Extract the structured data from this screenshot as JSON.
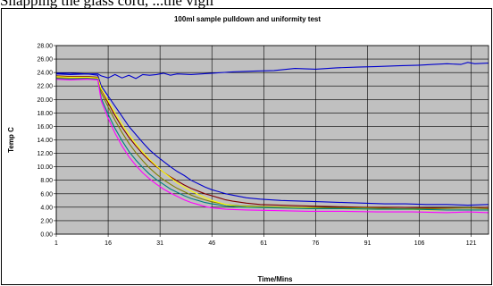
{
  "top_text": "Snapping the glass cord, ...the vigil",
  "chart_data": {
    "type": "line",
    "title": "100ml sample pulldown and uniformity test",
    "xlabel": "Time/Mins",
    "ylabel": "Temp C",
    "ylim": [
      0,
      28
    ],
    "xlim": [
      1,
      126
    ],
    "yticks": [
      "0.00",
      "2.00",
      "4.00",
      "6.00",
      "8.00",
      "10.00",
      "12.00",
      "14.00",
      "16.00",
      "18.00",
      "20.00",
      "22.00",
      "24.00",
      "26.00",
      "28.00"
    ],
    "xticks": [
      "1",
      "16",
      "31",
      "46",
      "61",
      "76",
      "91",
      "106",
      "121"
    ],
    "grid": true,
    "legend": "none",
    "plot_background": "#c0c0c0",
    "series": [
      {
        "color": "#0000cc",
        "points": [
          [
            1,
            23.9
          ],
          [
            5,
            23.9
          ],
          [
            10,
            23.8
          ],
          [
            13,
            23.8
          ],
          [
            14,
            23.5
          ],
          [
            16,
            23.2
          ],
          [
            18,
            23.7
          ],
          [
            20,
            23.2
          ],
          [
            22,
            23.6
          ],
          [
            24,
            23.1
          ],
          [
            26,
            23.7
          ],
          [
            28,
            23.6
          ],
          [
            30,
            23.7
          ],
          [
            32,
            23.9
          ],
          [
            34,
            23.6
          ],
          [
            36,
            23.8
          ],
          [
            40,
            23.7
          ],
          [
            46,
            23.9
          ],
          [
            52,
            24.1
          ],
          [
            58,
            24.2
          ],
          [
            64,
            24.3
          ],
          [
            70,
            24.6
          ],
          [
            76,
            24.5
          ],
          [
            82,
            24.7
          ],
          [
            88,
            24.8
          ],
          [
            94,
            24.9
          ],
          [
            100,
            25.0
          ],
          [
            106,
            25.1
          ],
          [
            110,
            25.2
          ],
          [
            114,
            25.3
          ],
          [
            118,
            25.2
          ],
          [
            120,
            25.5
          ],
          [
            122,
            25.3
          ],
          [
            126,
            25.4
          ]
        ]
      },
      {
        "color": "#0000cc",
        "points": [
          [
            1,
            23.8
          ],
          [
            5,
            23.7
          ],
          [
            10,
            23.8
          ],
          [
            13,
            23.6
          ],
          [
            14,
            22.0
          ],
          [
            16,
            20.5
          ],
          [
            18,
            19.0
          ],
          [
            20,
            17.5
          ],
          [
            22,
            16.0
          ],
          [
            24,
            14.8
          ],
          [
            26,
            13.6
          ],
          [
            28,
            12.5
          ],
          [
            30,
            11.6
          ],
          [
            32,
            10.8
          ],
          [
            34,
            10.0
          ],
          [
            36,
            9.3
          ],
          [
            38,
            8.7
          ],
          [
            40,
            8.0
          ],
          [
            42,
            7.5
          ],
          [
            44,
            7.0
          ],
          [
            46,
            6.6
          ],
          [
            48,
            6.3
          ],
          [
            50,
            6.0
          ],
          [
            52,
            5.8
          ],
          [
            54,
            5.6
          ],
          [
            56,
            5.4
          ],
          [
            60,
            5.2
          ],
          [
            66,
            5.0
          ],
          [
            72,
            4.9
          ],
          [
            78,
            4.8
          ],
          [
            84,
            4.7
          ],
          [
            90,
            4.6
          ],
          [
            96,
            4.5
          ],
          [
            102,
            4.5
          ],
          [
            108,
            4.4
          ],
          [
            114,
            4.4
          ],
          [
            120,
            4.3
          ],
          [
            126,
            4.4
          ]
        ]
      },
      {
        "color": "#800000",
        "points": [
          [
            1,
            23.5
          ],
          [
            5,
            23.4
          ],
          [
            10,
            23.4
          ],
          [
            13,
            23.3
          ],
          [
            14,
            21.5
          ],
          [
            16,
            19.5
          ],
          [
            18,
            17.6
          ],
          [
            20,
            15.9
          ],
          [
            22,
            14.4
          ],
          [
            24,
            13.1
          ],
          [
            26,
            11.9
          ],
          [
            28,
            10.9
          ],
          [
            30,
            10.0
          ],
          [
            32,
            9.2
          ],
          [
            34,
            8.5
          ],
          [
            36,
            7.9
          ],
          [
            38,
            7.3
          ],
          [
            40,
            6.8
          ],
          [
            42,
            6.4
          ],
          [
            44,
            6.0
          ],
          [
            46,
            5.7
          ],
          [
            48,
            5.4
          ],
          [
            50,
            5.1
          ],
          [
            52,
            4.9
          ],
          [
            56,
            4.6
          ],
          [
            60,
            4.4
          ],
          [
            66,
            4.3
          ],
          [
            72,
            4.2
          ],
          [
            80,
            4.1
          ],
          [
            90,
            4.0
          ],
          [
            100,
            4.0
          ],
          [
            110,
            3.9
          ],
          [
            120,
            3.9
          ],
          [
            126,
            4.0
          ]
        ]
      },
      {
        "color": "#808000",
        "points": [
          [
            1,
            23.2
          ],
          [
            5,
            23.2
          ],
          [
            10,
            23.2
          ],
          [
            13,
            23.1
          ],
          [
            14,
            21.0
          ],
          [
            16,
            18.9
          ],
          [
            18,
            16.9
          ],
          [
            20,
            15.1
          ],
          [
            22,
            13.5
          ],
          [
            24,
            12.1
          ],
          [
            26,
            10.9
          ],
          [
            28,
            9.8
          ],
          [
            30,
            8.9
          ],
          [
            32,
            8.1
          ],
          [
            34,
            7.4
          ],
          [
            36,
            6.8
          ],
          [
            38,
            6.3
          ],
          [
            40,
            5.8
          ],
          [
            42,
            5.4
          ],
          [
            44,
            5.1
          ],
          [
            46,
            4.8
          ],
          [
            48,
            4.6
          ],
          [
            50,
            4.4
          ],
          [
            54,
            4.2
          ],
          [
            60,
            4.1
          ],
          [
            70,
            4.0
          ],
          [
            80,
            3.9
          ],
          [
            90,
            3.9
          ],
          [
            100,
            3.8
          ],
          [
            110,
            3.8
          ],
          [
            120,
            3.9
          ],
          [
            126,
            3.8
          ]
        ]
      },
      {
        "color": "#ffff00",
        "points": [
          [
            1,
            23.4
          ],
          [
            5,
            23.3
          ],
          [
            10,
            23.3
          ],
          [
            13,
            23.2
          ],
          [
            14,
            21.6
          ],
          [
            16,
            19.8
          ],
          [
            18,
            18.0
          ],
          [
            20,
            16.3
          ],
          [
            22,
            14.8
          ],
          [
            24,
            13.4
          ],
          [
            26,
            12.2
          ],
          [
            28,
            11.1
          ],
          [
            30,
            10.1
          ],
          [
            32,
            9.2
          ],
          [
            34,
            8.4
          ],
          [
            36,
            7.6
          ],
          [
            38,
            7.0
          ],
          [
            40,
            6.4
          ],
          [
            42,
            5.9
          ],
          [
            44,
            5.4
          ],
          [
            46,
            5.0
          ],
          [
            48,
            4.7
          ],
          [
            50,
            4.4
          ],
          [
            54,
            4.1
          ],
          [
            60,
            4.0
          ],
          [
            70,
            3.9
          ],
          [
            80,
            3.8
          ],
          [
            90,
            3.7
          ],
          [
            100,
            3.7
          ],
          [
            110,
            3.6
          ],
          [
            120,
            3.6
          ],
          [
            126,
            3.6
          ]
        ]
      },
      {
        "color": "#008080",
        "points": [
          [
            1,
            23.1
          ],
          [
            5,
            23.0
          ],
          [
            10,
            23.1
          ],
          [
            13,
            23.0
          ],
          [
            14,
            20.2
          ],
          [
            16,
            17.8
          ],
          [
            18,
            15.7
          ],
          [
            20,
            13.9
          ],
          [
            22,
            12.3
          ],
          [
            24,
            11.0
          ],
          [
            26,
            9.9
          ],
          [
            28,
            8.9
          ],
          [
            30,
            8.1
          ],
          [
            32,
            7.4
          ],
          [
            34,
            6.7
          ],
          [
            36,
            6.2
          ],
          [
            38,
            5.7
          ],
          [
            40,
            5.3
          ],
          [
            42,
            5.0
          ],
          [
            44,
            4.7
          ],
          [
            46,
            4.5
          ],
          [
            50,
            4.2
          ],
          [
            56,
            4.0
          ],
          [
            64,
            3.9
          ],
          [
            74,
            3.8
          ],
          [
            84,
            3.8
          ],
          [
            94,
            3.7
          ],
          [
            104,
            3.7
          ],
          [
            114,
            3.6
          ],
          [
            126,
            3.6
          ]
        ]
      },
      {
        "color": "#ff00ff",
        "points": [
          [
            1,
            23.0
          ],
          [
            5,
            22.9
          ],
          [
            10,
            23.0
          ],
          [
            13,
            22.9
          ],
          [
            14,
            19.8
          ],
          [
            16,
            17.2
          ],
          [
            18,
            15.0
          ],
          [
            20,
            13.1
          ],
          [
            22,
            11.5
          ],
          [
            24,
            10.2
          ],
          [
            26,
            9.1
          ],
          [
            28,
            8.2
          ],
          [
            30,
            7.4
          ],
          [
            32,
            6.7
          ],
          [
            34,
            6.1
          ],
          [
            36,
            5.6
          ],
          [
            38,
            5.1
          ],
          [
            40,
            4.7
          ],
          [
            42,
            4.4
          ],
          [
            44,
            4.1
          ],
          [
            46,
            3.9
          ],
          [
            50,
            3.7
          ],
          [
            56,
            3.6
          ],
          [
            64,
            3.5
          ],
          [
            74,
            3.4
          ],
          [
            84,
            3.4
          ],
          [
            94,
            3.3
          ],
          [
            104,
            3.3
          ],
          [
            114,
            3.2
          ],
          [
            120,
            3.3
          ],
          [
            126,
            3.2
          ]
        ]
      }
    ]
  }
}
